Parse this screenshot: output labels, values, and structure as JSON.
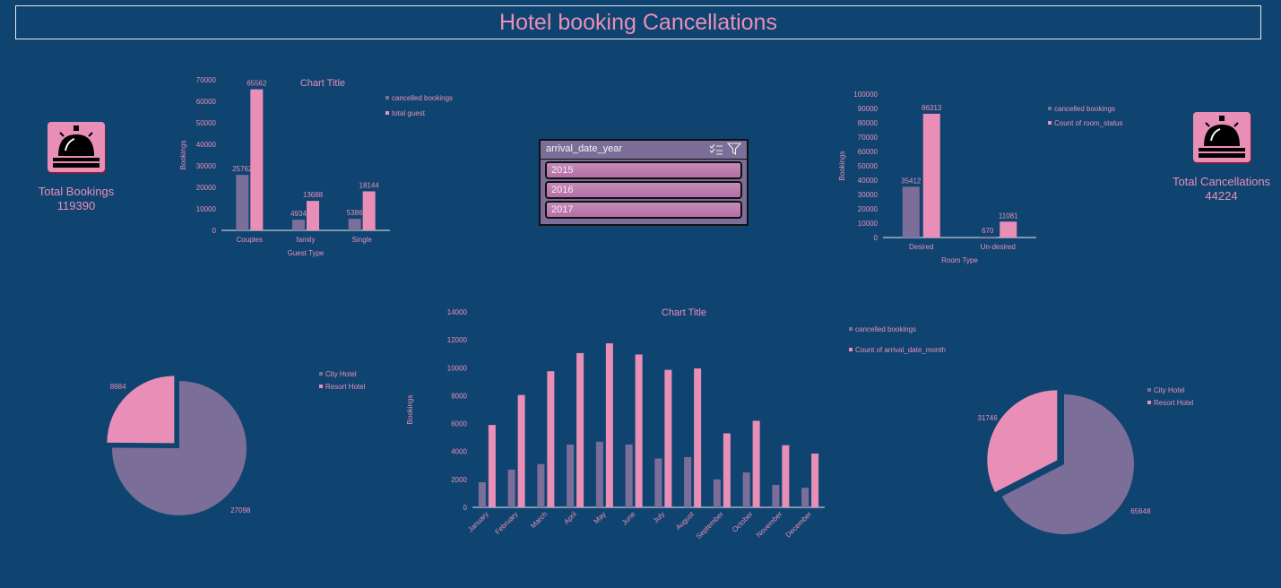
{
  "dashboard": {
    "title": "Hotel booking Cancellations"
  },
  "kpis": {
    "total_bookings": {
      "label": "Total Bookings",
      "value": "119390",
      "icon": "service-bell-icon"
    },
    "total_cancellations": {
      "label": "Total Cancellations",
      "value": "44224",
      "icon": "service-bell-icon"
    }
  },
  "slicer": {
    "title": "arrival_date_year",
    "items": [
      "2015",
      "2016",
      "2017"
    ]
  },
  "colors": {
    "background": "#0f4470",
    "cancelled": "#7b6e98",
    "total": "#e98fb7",
    "text": "#e98fb7"
  },
  "chart_data": [
    {
      "id": "guest-type",
      "type": "bar",
      "title": "Chart Title",
      "xlabel": "Guest Type",
      "ylabel": "Bookings",
      "categories": [
        "Couples",
        "family",
        "Single"
      ],
      "ylim": [
        0,
        70000
      ],
      "yticks": [
        0,
        10000,
        20000,
        30000,
        40000,
        50000,
        60000,
        70000
      ],
      "legend": "top-right",
      "series": [
        {
          "name": "cancelled bookings",
          "values": [
            25762,
            4934,
            5386
          ]
        },
        {
          "name": "total guest",
          "values": [
            65562,
            13688,
            18144
          ]
        }
      ]
    },
    {
      "id": "room-type",
      "type": "bar",
      "title": "",
      "xlabel": "Room Type",
      "ylabel": "Bookings",
      "categories": [
        "Desired",
        "Un-desired"
      ],
      "ylim": [
        0,
        100000
      ],
      "yticks": [
        0,
        10000,
        20000,
        30000,
        40000,
        50000,
        60000,
        70000,
        80000,
        90000,
        100000
      ],
      "legend": "top-right",
      "series": [
        {
          "name": "cancelled bookings",
          "values": [
            35412,
            670
          ]
        },
        {
          "name": "Count of room_status",
          "values": [
            86313,
            11081
          ]
        }
      ]
    },
    {
      "id": "monthly",
      "type": "bar",
      "title": "Chart Title",
      "xlabel": "",
      "ylabel": "Bookings",
      "categories": [
        "January",
        "February",
        "March",
        "April",
        "May",
        "June",
        "July",
        "August",
        "September",
        "October",
        "November",
        "December"
      ],
      "ylim": [
        0,
        14000
      ],
      "yticks": [
        0,
        2000,
        4000,
        6000,
        8000,
        10000,
        12000,
        14000
      ],
      "legend": "top-right",
      "series": [
        {
          "name": "cancelled bookings",
          "values": [
            1800,
            2700,
            3100,
            4500,
            4700,
            4500,
            3500,
            3600,
            2000,
            2500,
            1600,
            1400
          ]
        },
        {
          "name": "Count of arrival_date_month",
          "values": [
            5900,
            8050,
            9750,
            11050,
            11750,
            10950,
            9850,
            9950,
            5300,
            6200,
            4450,
            3850
          ]
        }
      ]
    },
    {
      "id": "hotel-cancelled",
      "type": "pie",
      "legend": "right",
      "labels": [
        "City Hotel",
        "Resort Hotel"
      ],
      "values": [
        27098,
        8984
      ]
    },
    {
      "id": "hotel-total",
      "type": "pie",
      "legend": "right",
      "labels": [
        "City Hotel",
        "Resort Hotel"
      ],
      "values": [
        65648,
        31746
      ]
    }
  ]
}
